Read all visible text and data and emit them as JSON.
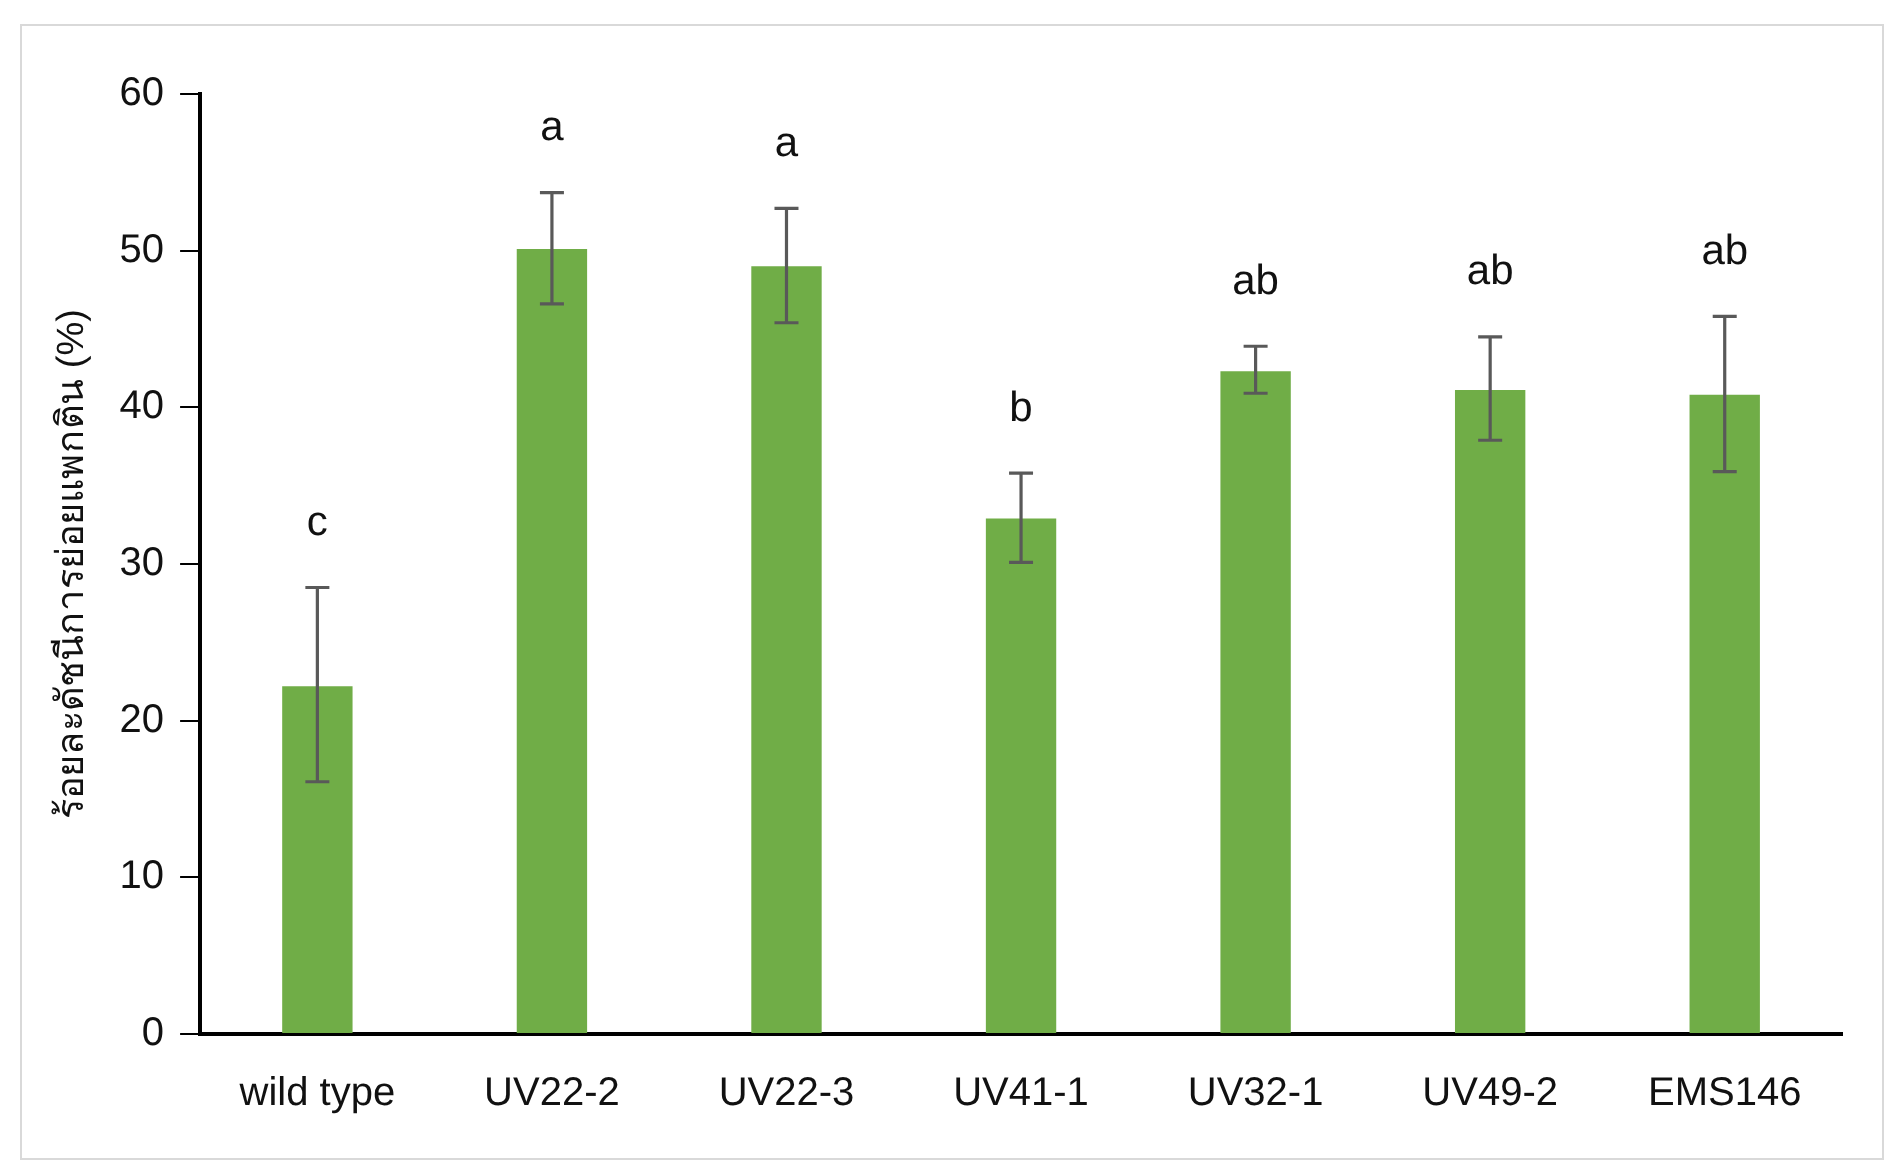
{
  "chart_data": {
    "type": "bar",
    "ylabel": "ร้อยละดัชนีการย่อยแพกติน (%)",
    "categories": [
      "wild type",
      "UV22-2",
      "UV22-3",
      "UV41-1",
      "UV32-1",
      "UV49-2",
      "EMS146"
    ],
    "values": [
      22.2,
      50.1,
      49.0,
      32.9,
      42.3,
      41.1,
      40.8
    ],
    "errors": [
      [
        16.1,
        28.5
      ],
      [
        46.6,
        53.7
      ],
      [
        45.4,
        52.7
      ],
      [
        30.1,
        35.8
      ],
      [
        40.9,
        43.9
      ],
      [
        37.9,
        44.5
      ],
      [
        35.9,
        45.8
      ]
    ],
    "color": "#70ad47",
    "ylim": [
      0,
      60
    ],
    "yticks": [
      0,
      10,
      20,
      30,
      40,
      50,
      60
    ],
    "grid": false,
    "legend": false,
    "annotations": [
      "c",
      "a",
      "a",
      "b",
      "ab",
      "ab",
      "ab"
    ]
  }
}
